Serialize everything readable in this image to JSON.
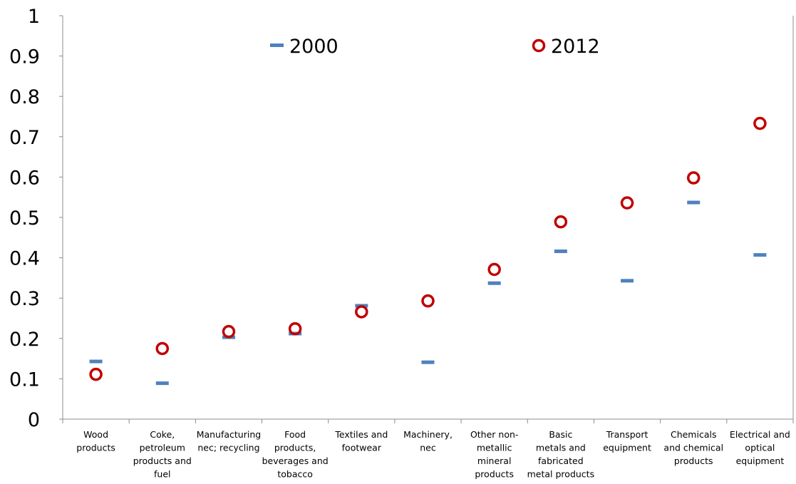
{
  "chart_data": {
    "type": "scatter",
    "title": "",
    "xlabel": "",
    "ylabel": "",
    "ylim": [
      0,
      1
    ],
    "yticks": [
      "0",
      "0.1",
      "0.2",
      "0.3",
      "0.4",
      "0.5",
      "0.6",
      "0.7",
      "0.8",
      "0.9",
      "1"
    ],
    "grid": false,
    "legend_position": "top",
    "categories": [
      [
        "Wood",
        "products"
      ],
      [
        "Coke,",
        "petroleum",
        "products and",
        "fuel"
      ],
      [
        "Manufacturing",
        "nec; recycling"
      ],
      [
        "Food",
        "products,",
        "beverages and",
        "tobacco"
      ],
      [
        "Textiles and",
        "footwear"
      ],
      [
        "Machinery,",
        "nec"
      ],
      [
        "Other non-",
        "metallic",
        "mineral",
        "products"
      ],
      [
        "Basic",
        "metals and",
        "fabricated",
        "metal products"
      ],
      [
        "Transport",
        "equipment"
      ],
      [
        "Chemicals",
        "and chemical",
        "products"
      ],
      [
        "Electrical and",
        "optical",
        "equipment"
      ]
    ],
    "series": [
      {
        "name": "2000",
        "marker": "dash",
        "color": "#4F81BD",
        "values": [
          0.143,
          0.089,
          0.203,
          0.212,
          0.281,
          0.141,
          0.337,
          0.416,
          0.343,
          0.537,
          0.407
        ]
      },
      {
        "name": "2012",
        "marker": "circle",
        "color": "#C00000",
        "values": [
          0.111,
          0.175,
          0.217,
          0.224,
          0.266,
          0.293,
          0.371,
          0.489,
          0.536,
          0.598,
          0.733
        ]
      }
    ]
  }
}
